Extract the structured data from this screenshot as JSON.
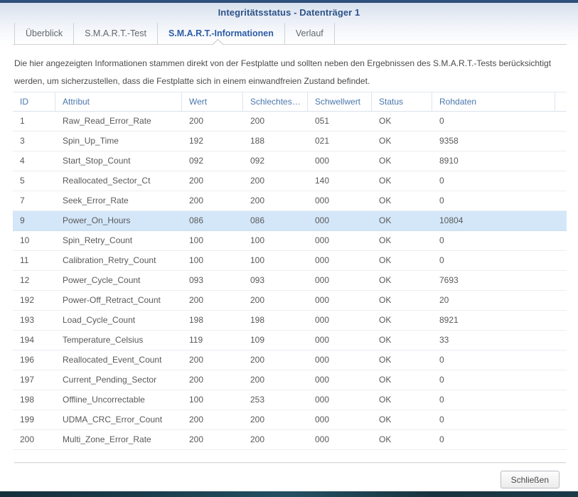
{
  "dialog": {
    "title": "Integritätsstatus - Datenträger 1",
    "close_label": "Schließen"
  },
  "tabs": [
    {
      "label": "Überblick",
      "active": false
    },
    {
      "label": "S.M.A.R.T.-Test",
      "active": false
    },
    {
      "label": "S.M.A.R.T.-Informationen",
      "active": true
    },
    {
      "label": "Verlauf",
      "active": false
    }
  ],
  "description": "Die hier angezeigten Informationen stammen direkt von der Festplatte und sollten neben den Ergebnissen des S.M.A.R.T.-Tests berücksichtigt werden, um sicherzustellen, dass die Festplatte sich in einem einwandfreien Zustand befindet.",
  "table": {
    "columns": [
      "ID",
      "Attribut",
      "Wert",
      "Schlechtes…",
      "Schwellwert",
      "Status",
      "Rohdaten"
    ],
    "rows": [
      {
        "id": "1",
        "attribut": "Raw_Read_Error_Rate",
        "wert": "200",
        "schlechtester": "200",
        "schwellwert": "051",
        "status": "OK",
        "rohdaten": "0",
        "selected": false
      },
      {
        "id": "3",
        "attribut": "Spin_Up_Time",
        "wert": "192",
        "schlechtester": "188",
        "schwellwert": "021",
        "status": "OK",
        "rohdaten": "9358",
        "selected": false
      },
      {
        "id": "4",
        "attribut": "Start_Stop_Count",
        "wert": "092",
        "schlechtester": "092",
        "schwellwert": "000",
        "status": "OK",
        "rohdaten": "8910",
        "selected": false
      },
      {
        "id": "5",
        "attribut": "Reallocated_Sector_Ct",
        "wert": "200",
        "schlechtester": "200",
        "schwellwert": "140",
        "status": "OK",
        "rohdaten": "0",
        "selected": false
      },
      {
        "id": "7",
        "attribut": "Seek_Error_Rate",
        "wert": "200",
        "schlechtester": "200",
        "schwellwert": "000",
        "status": "OK",
        "rohdaten": "0",
        "selected": false
      },
      {
        "id": "9",
        "attribut": "Power_On_Hours",
        "wert": "086",
        "schlechtester": "086",
        "schwellwert": "000",
        "status": "OK",
        "rohdaten": "10804",
        "selected": true
      },
      {
        "id": "10",
        "attribut": "Spin_Retry_Count",
        "wert": "100",
        "schlechtester": "100",
        "schwellwert": "000",
        "status": "OK",
        "rohdaten": "0",
        "selected": false
      },
      {
        "id": "11",
        "attribut": "Calibration_Retry_Count",
        "wert": "100",
        "schlechtester": "100",
        "schwellwert": "000",
        "status": "OK",
        "rohdaten": "0",
        "selected": false
      },
      {
        "id": "12",
        "attribut": "Power_Cycle_Count",
        "wert": "093",
        "schlechtester": "093",
        "schwellwert": "000",
        "status": "OK",
        "rohdaten": "7693",
        "selected": false
      },
      {
        "id": "192",
        "attribut": "Power-Off_Retract_Count",
        "wert": "200",
        "schlechtester": "200",
        "schwellwert": "000",
        "status": "OK",
        "rohdaten": "20",
        "selected": false
      },
      {
        "id": "193",
        "attribut": "Load_Cycle_Count",
        "wert": "198",
        "schlechtester": "198",
        "schwellwert": "000",
        "status": "OK",
        "rohdaten": "8921",
        "selected": false
      },
      {
        "id": "194",
        "attribut": "Temperature_Celsius",
        "wert": "119",
        "schlechtester": "109",
        "schwellwert": "000",
        "status": "OK",
        "rohdaten": "33",
        "selected": false
      },
      {
        "id": "196",
        "attribut": "Reallocated_Event_Count",
        "wert": "200",
        "schlechtester": "200",
        "schwellwert": "000",
        "status": "OK",
        "rohdaten": "0",
        "selected": false
      },
      {
        "id": "197",
        "attribut": "Current_Pending_Sector",
        "wert": "200",
        "schlechtester": "200",
        "schwellwert": "000",
        "status": "OK",
        "rohdaten": "0",
        "selected": false
      },
      {
        "id": "198",
        "attribut": "Offline_Uncorrectable",
        "wert": "100",
        "schlechtester": "253",
        "schwellwert": "000",
        "status": "OK",
        "rohdaten": "0",
        "selected": false
      },
      {
        "id": "199",
        "attribut": "UDMA_CRC_Error_Count",
        "wert": "200",
        "schlechtester": "200",
        "schwellwert": "000",
        "status": "OK",
        "rohdaten": "0",
        "selected": false
      },
      {
        "id": "200",
        "attribut": "Multi_Zone_Error_Rate",
        "wert": "200",
        "schlechtester": "200",
        "schwellwert": "000",
        "status": "OK",
        "rohdaten": "0",
        "selected": false
      }
    ]
  },
  "colors": {
    "accent_blue": "#2d5ca8",
    "header_text_blue": "#4a77ad",
    "selected_row_bg": "#d4e7f9",
    "titlebar_strip": "#2e507c",
    "status_ok_text": "#595959"
  }
}
